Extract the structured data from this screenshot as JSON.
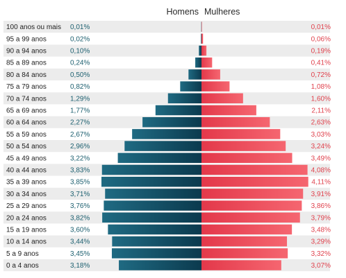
{
  "chart_data": {
    "type": "bar",
    "subtype": "population-pyramid",
    "title": "",
    "legend": [
      "Homens",
      "Mulheres"
    ],
    "categories": [
      "100 anos ou mais",
      "95 a 99 anos",
      "90 a 94 anos",
      "85 a 89 anos",
      "80 a 84 anos",
      "75 a 79 anos",
      "70 a 74 anos",
      "65 a 69 anos",
      "60 a 64 anos",
      "55 a 59 anos",
      "50 a 54 anos",
      "45 a 49 anos",
      "40 a 44 anos",
      "35 a 39 anos",
      "30 a 34 anos",
      "25 a 29 anos",
      "20 a 24 anos",
      "15 a 19 anos",
      "10 a 14 anos",
      "5 a 9 anos",
      "0 a 4 anos"
    ],
    "series": [
      {
        "name": "Homens",
        "values": [
          0.01,
          0.02,
          0.1,
          0.24,
          0.5,
          0.82,
          1.29,
          1.77,
          2.27,
          2.67,
          2.96,
          3.22,
          3.83,
          3.85,
          3.71,
          3.76,
          3.82,
          3.6,
          3.44,
          3.45,
          3.18
        ],
        "labels": [
          "0,01%",
          "0,02%",
          "0,10%",
          "0,24%",
          "0,50%",
          "0,82%",
          "1,29%",
          "1,77%",
          "2,27%",
          "2,67%",
          "2,96%",
          "3,22%",
          "3,83%",
          "3,85%",
          "3,71%",
          "3,76%",
          "3,82%",
          "3,60%",
          "3,44%",
          "3,45%",
          "3,18%"
        ],
        "color": "#0b3a4e"
      },
      {
        "name": "Mulheres",
        "values": [
          0.01,
          0.06,
          0.19,
          0.41,
          0.72,
          1.08,
          1.6,
          2.11,
          2.63,
          3.03,
          3.24,
          3.49,
          4.08,
          4.11,
          3.91,
          3.86,
          3.79,
          3.48,
          3.29,
          3.32,
          3.07
        ],
        "labels": [
          "0,01%",
          "0,06%",
          "0,19%",
          "0,41%",
          "0,72%",
          "1,08%",
          "1,60%",
          "2,11%",
          "2,63%",
          "3,03%",
          "3,24%",
          "3,49%",
          "4,08%",
          "4,11%",
          "3,91%",
          "3,86%",
          "3,79%",
          "3,48%",
          "3,29%",
          "3,32%",
          "3,07%"
        ],
        "color": "#f04a55"
      }
    ],
    "colors": {
      "male_dark": "#0b3a4e",
      "male_light": "#1f6a82",
      "female_dark": "#e3384a",
      "female_light": "#f56670",
      "stripe": "#ececec",
      "male_text": "#1c5f6f",
      "female_text": "#e0424d"
    }
  }
}
